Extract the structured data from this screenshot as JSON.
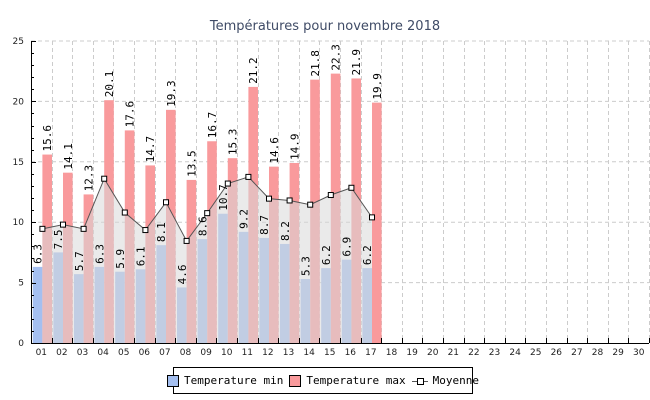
{
  "chart_data": {
    "type": "bar",
    "title": "Températures pour novembre 2018",
    "xlabel": "",
    "ylabel": "",
    "ylim": [
      0,
      25
    ],
    "yticks": [
      0,
      5,
      10,
      15,
      20,
      25
    ],
    "grid": true,
    "legend_position": "bottom-center",
    "categories": [
      "01",
      "02",
      "03",
      "04",
      "05",
      "06",
      "07",
      "08",
      "09",
      "10",
      "11",
      "12",
      "13",
      "14",
      "15",
      "16",
      "17",
      "18",
      "19",
      "20",
      "21",
      "22",
      "23",
      "24",
      "25",
      "26",
      "27",
      "28",
      "29",
      "30"
    ],
    "series": [
      {
        "name": "Temperature min",
        "type": "bar",
        "color": "#a4bff0",
        "values": [
          6.3,
          7.5,
          5.7,
          6.3,
          5.9,
          6.1,
          8.1,
          4.6,
          8.6,
          10.7,
          9.2,
          8.7,
          8.2,
          5.3,
          6.2,
          6.9,
          6.2,
          null,
          null,
          null,
          null,
          null,
          null,
          null,
          null,
          null,
          null,
          null,
          null,
          null
        ],
        "labels": [
          "6.3",
          "7.5",
          "5.7",
          "6.3",
          "5.9",
          "6.1",
          "8.1",
          "4.6",
          "8.6",
          "10.7",
          "9.2",
          "8.7",
          "8.2",
          "5.3",
          "6.2",
          "6.9",
          "6.2"
        ]
      },
      {
        "name": "Temperature max",
        "type": "bar",
        "color": "#f99a9c",
        "values": [
          15.6,
          14.1,
          12.3,
          20.1,
          17.6,
          14.7,
          19.3,
          13.5,
          16.7,
          15.3,
          21.2,
          14.6,
          14.9,
          21.8,
          22.3,
          21.9,
          19.9,
          null,
          null,
          null,
          null,
          null,
          null,
          null,
          null,
          null,
          null,
          null,
          null,
          null
        ],
        "labels": [
          "15.6",
          "14.1",
          "12.3",
          "20.1",
          "17.6",
          "14.7",
          "19.3",
          "13.5",
          "16.7",
          "15.3",
          "21.2",
          "14.6",
          "14.9",
          "21.8",
          "22.3",
          "21.9",
          "19.9"
        ]
      },
      {
        "name": "Moyenne",
        "type": "line",
        "color": "#555555",
        "fill": "#d8d8d8",
        "values": [
          9.45,
          9.8,
          9.45,
          13.6,
          10.8,
          9.35,
          11.65,
          8.45,
          10.75,
          13.2,
          13.75,
          11.95,
          11.8,
          11.45,
          12.25,
          12.85,
          10.4,
          null,
          null,
          null,
          null,
          null,
          null,
          null,
          null,
          null,
          null,
          null,
          null,
          null
        ]
      }
    ]
  },
  "legend": {
    "items": [
      {
        "label": "Temperature min",
        "color": "#a4bff0"
      },
      {
        "label": "Temperature max",
        "color": "#f99a9c"
      },
      {
        "label": "Moyenne"
      }
    ]
  }
}
